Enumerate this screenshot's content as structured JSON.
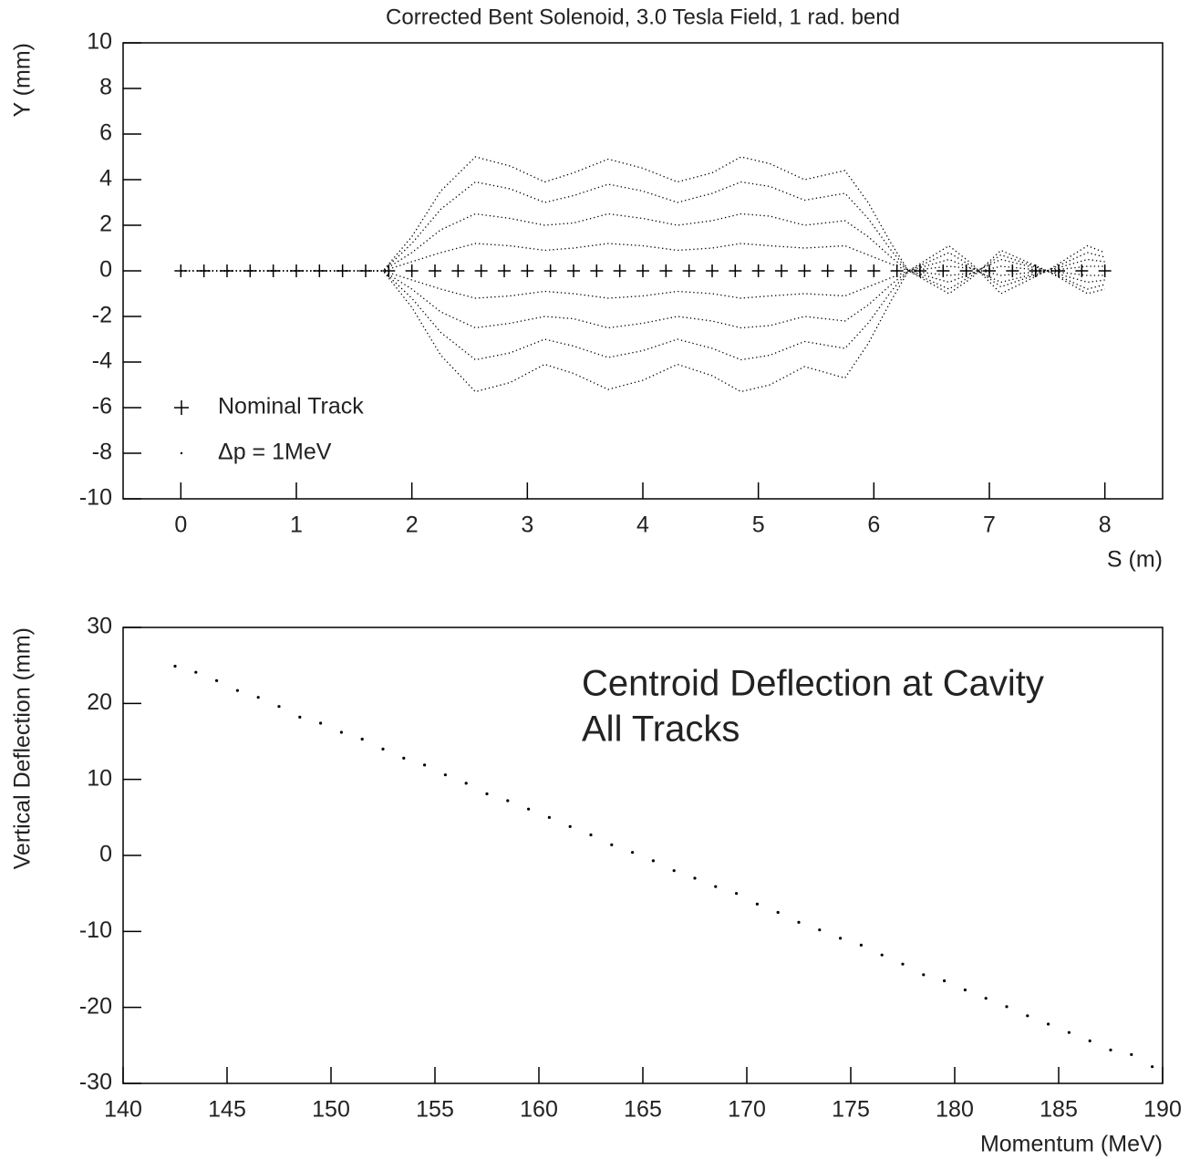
{
  "chart_data": [
    {
      "type": "line",
      "title": "Corrected Bent Solenoid, 3.0 Tesla Field, 1 rad. bend",
      "x_label": "S (m)",
      "y_label": "Y (mm)",
      "xlim": [
        -0.5,
        8.5
      ],
      "xticks": [
        0,
        1,
        2,
        3,
        4,
        5,
        6,
        7,
        8
      ],
      "ylim": [
        -10,
        10
      ],
      "yticks": [
        -10,
        -8,
        -6,
        -4,
        -2,
        0,
        2,
        4,
        6,
        8,
        10
      ],
      "legend": "lower left",
      "series": [
        {
          "name": "Nominal Track",
          "marker": "+",
          "color": "#000000",
          "x": [
            0,
            0.2,
            0.4,
            0.6,
            0.8,
            1,
            1.2,
            1.4,
            1.6,
            1.8,
            2,
            2.2,
            2.4,
            2.6,
            2.8,
            3,
            3.2,
            3.4,
            3.6,
            3.8,
            4,
            4.2,
            4.4,
            4.6,
            4.8,
            5,
            5.2,
            5.4,
            5.6,
            5.8,
            6,
            6.2,
            6.4,
            6.6,
            6.8,
            7,
            7.2,
            7.4,
            7.6,
            7.8,
            8
          ],
          "values": [
            0,
            0,
            0,
            0,
            0,
            0,
            0,
            0,
            0,
            0,
            0,
            0,
            0,
            0,
            0,
            0,
            0,
            0,
            0,
            0,
            0,
            0,
            0,
            0,
            0,
            0,
            0,
            0,
            0,
            0,
            0,
            0,
            0,
            0,
            0,
            0,
            0,
            0,
            0,
            0,
            0
          ]
        },
        {
          "name": "Δp = 1MeV",
          "marker": "dot",
          "color": "#000000",
          "x": [
            0,
            1.75,
            2,
            2.25,
            2.55,
            2.85,
            3.15,
            3.4,
            3.7,
            4.0,
            4.3,
            4.6,
            4.85,
            5.1,
            5.4,
            5.75,
            5.95,
            6.15,
            6.3,
            6.65,
            6.85,
            7.1,
            7.5,
            7.85,
            8.0
          ],
          "curves": [
            [
              0,
              0,
              1.5,
              3.5,
              5,
              4.6,
              3.9,
              4.3,
              4.9,
              4.5,
              3.9,
              4.3,
              5,
              4.7,
              4,
              4.4,
              3,
              1.2,
              0,
              -1,
              -0.3,
              0.9,
              0,
              -1,
              -0.8
            ],
            [
              0,
              0,
              1.2,
              2.7,
              3.9,
              3.6,
              3,
              3.3,
              3.8,
              3.5,
              3,
              3.4,
              3.9,
              3.7,
              3.1,
              3.4,
              2.3,
              0.9,
              0,
              -0.8,
              -0.2,
              0.7,
              0,
              -0.8,
              -0.6
            ],
            [
              0,
              0,
              0.8,
              1.8,
              2.5,
              2.3,
              2,
              2.1,
              2.5,
              2.3,
              2,
              2.2,
              2.5,
              2.4,
              2,
              2.2,
              1.5,
              0.6,
              0,
              -0.5,
              -0.1,
              0.5,
              0,
              -0.5,
              -0.4
            ],
            [
              0,
              0,
              0.4,
              0.8,
              1.2,
              1.1,
              0.9,
              1,
              1.2,
              1.1,
              0.9,
              1,
              1.2,
              1.1,
              1,
              1.1,
              0.7,
              0.3,
              0,
              -0.2,
              -0.1,
              0.2,
              0,
              -0.2,
              -0.2
            ],
            [
              0,
              0,
              -0.4,
              -0.8,
              -1.2,
              -1.1,
              -0.9,
              -1,
              -1.2,
              -1.1,
              -0.9,
              -1,
              -1.2,
              -1.1,
              -1,
              -1.1,
              -0.7,
              -0.3,
              0,
              0.2,
              0.1,
              -0.2,
              0,
              0.2,
              0.2
            ],
            [
              0,
              0,
              -0.8,
              -1.8,
              -2.5,
              -2.3,
              -2,
              -2.1,
              -2.5,
              -2.3,
              -2,
              -2.2,
              -2.5,
              -2.4,
              -2,
              -2.2,
              -1.5,
              -0.6,
              0,
              0.5,
              0.1,
              -0.5,
              0,
              0.5,
              0.4
            ],
            [
              0,
              0,
              -1.2,
              -2.7,
              -3.9,
              -3.6,
              -3,
              -3.3,
              -3.8,
              -3.5,
              -3,
              -3.4,
              -3.9,
              -3.7,
              -3.1,
              -3.4,
              -2.3,
              -0.9,
              0,
              0.8,
              0.2,
              -0.7,
              0,
              0.8,
              0.6
            ],
            [
              0,
              0,
              -1.6,
              -3.7,
              -5.3,
              -4.9,
              -4.1,
              -4.5,
              -5.2,
              -4.8,
              -4.1,
              -4.6,
              -5.3,
              -5,
              -4.2,
              -4.7,
              -3.2,
              -1.3,
              0,
              1.1,
              0.3,
              -1,
              0,
              1.1,
              0.8
            ]
          ]
        }
      ]
    },
    {
      "type": "scatter",
      "annotations": [
        "Centroid Deflection at Cavity",
        "All Tracks"
      ],
      "x_label": "Momentum (MeV)",
      "y_label": "Vertical Deflection (mm)",
      "xlim": [
        140,
        190
      ],
      "xticks": [
        140,
        145,
        150,
        155,
        160,
        165,
        170,
        175,
        180,
        185,
        190
      ],
      "ylim": [
        -30,
        30
      ],
      "yticks": [
        -30,
        -20,
        -10,
        0,
        10,
        20,
        30
      ],
      "color": "#000000",
      "x": [
        142.5,
        143.5,
        144.5,
        145.5,
        146.5,
        147.5,
        148.5,
        149.5,
        150.5,
        151.5,
        152.5,
        153.5,
        154.5,
        155.5,
        156.5,
        157.5,
        158.5,
        159.5,
        160.5,
        161.5,
        162.5,
        163.5,
        164.5,
        165.5,
        166.5,
        167.5,
        168.5,
        169.5,
        170.5,
        171.5,
        172.5,
        173.5,
        174.5,
        175.5,
        176.5,
        177.5,
        178.5,
        179.5,
        180.5,
        181.5,
        182.5,
        183.5,
        184.5,
        185.5,
        186.5,
        187.5,
        188.5,
        189.5
      ],
      "values": [
        24.9,
        24.1,
        23.0,
        21.7,
        20.8,
        19.6,
        18.2,
        17.4,
        16.2,
        15.3,
        14.0,
        12.8,
        11.9,
        10.6,
        9.5,
        8.1,
        7.2,
        6.1,
        5.0,
        3.8,
        2.7,
        1.4,
        0.4,
        -0.7,
        -2.0,
        -3.0,
        -4.1,
        -5.0,
        -6.4,
        -7.5,
        -8.8,
        -9.8,
        -10.9,
        -11.8,
        -13.1,
        -14.3,
        -15.7,
        -16.5,
        -17.7,
        -18.8,
        -19.9,
        -21.1,
        -22.2,
        -23.3,
        -24.4,
        -25.6,
        -26.2,
        -27.8
      ]
    }
  ]
}
